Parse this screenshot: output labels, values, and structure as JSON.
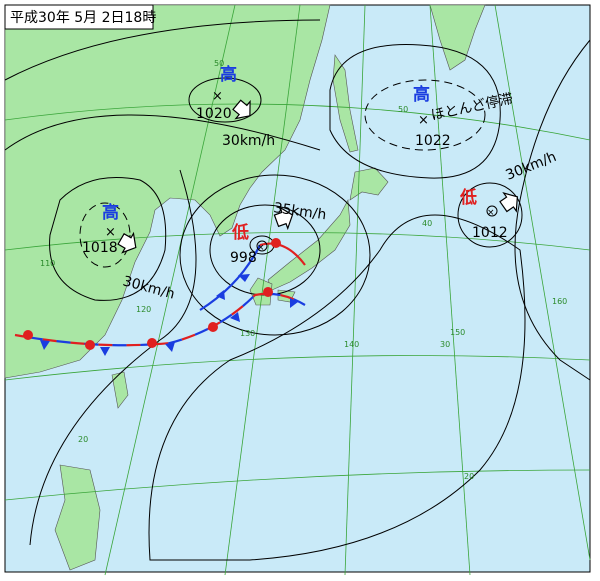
{
  "header": {
    "title": "平成30年 5月 2日18時"
  },
  "systems": [
    {
      "kind": "高",
      "pressure": "1020",
      "motion": "30km/h"
    },
    {
      "kind": "高",
      "pressure": "1022",
      "note": "ほとんど停滞"
    },
    {
      "kind": "高",
      "pressure": "1018",
      "motion": "30km/h"
    },
    {
      "kind": "低",
      "pressure": "998",
      "motion": "35km/h"
    },
    {
      "kind": "低",
      "pressure": "1012",
      "motion": "30km/h"
    }
  ],
  "grid_labels": [
    "50",
    "50",
    "40",
    "30",
    "20",
    "20",
    "110",
    "120",
    "130",
    "140",
    "150",
    "160"
  ]
}
